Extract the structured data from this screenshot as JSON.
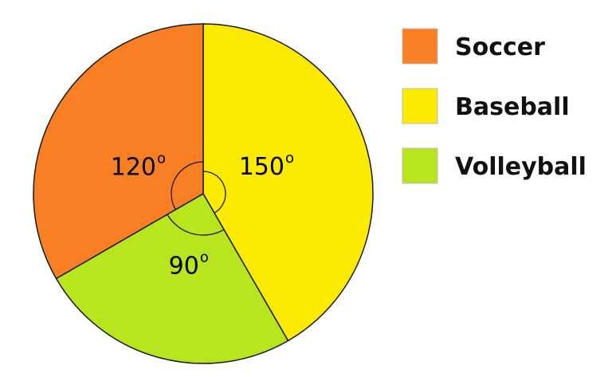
{
  "chart_data": {
    "type": "pie",
    "slices": [
      {
        "label": "Soccer",
        "value": 120,
        "value_label": "120",
        "color": "#F97F24"
      },
      {
        "label": "Baseball",
        "value": 150,
        "value_label": "150",
        "color": "#FCEB00"
      },
      {
        "label": "Volleyball",
        "value": 90,
        "value_label": "90",
        "color": "#B8E51E"
      }
    ],
    "degree_symbol": "o",
    "value_unit": "degrees",
    "legend_position": "right",
    "angle_arcs_drawn": true
  }
}
